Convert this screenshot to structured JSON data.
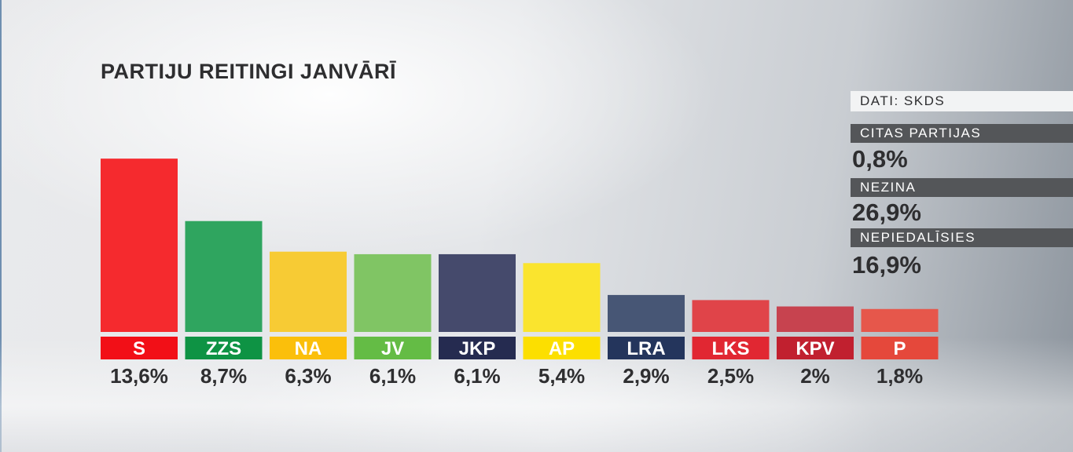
{
  "title": "PARTIJU REITINGI JANVĀRĪ",
  "source": "DATI: SKDS",
  "side_stats": [
    {
      "label": "CITAS PARTIJAS",
      "value": "0,8%"
    },
    {
      "label": "NEZINA",
      "value": "26,9%"
    },
    {
      "label": "NEPIEDALĪSIES",
      "value": "16,9%"
    }
  ],
  "chart_data": {
    "type": "bar",
    "title": "PARTIJU REITINGI JANVĀRĪ",
    "categories": [
      "S",
      "ZZS",
      "NA",
      "JV",
      "JKP",
      "AP",
      "LRA",
      "LKS",
      "KPV",
      "P"
    ],
    "values": [
      13.6,
      8.7,
      6.3,
      6.1,
      6.1,
      5.4,
      2.9,
      2.5,
      2,
      1.8
    ],
    "value_labels": [
      "13,6%",
      "8,7%",
      "6,3%",
      "6,1%",
      "6,1%",
      "5,4%",
      "2,9%",
      "2,5%",
      "2%",
      "1,8%"
    ],
    "bar_colors": [
      "#f52a2e",
      "#2fa55f",
      "#f7cb34",
      "#80c564",
      "#454a6c",
      "#fae42e",
      "#475675",
      "#e04449",
      "#c7434f",
      "#e6574b"
    ],
    "label_colors": [
      "#f20f17",
      "#0e9344",
      "#fbbf0b",
      "#64bc45",
      "#252b50",
      "#fcdf00",
      "#24355c",
      "#e12732",
      "#c1202f",
      "#e5483b"
    ],
    "xlabel": "",
    "ylabel": "",
    "grid": false,
    "legend": "none"
  }
}
